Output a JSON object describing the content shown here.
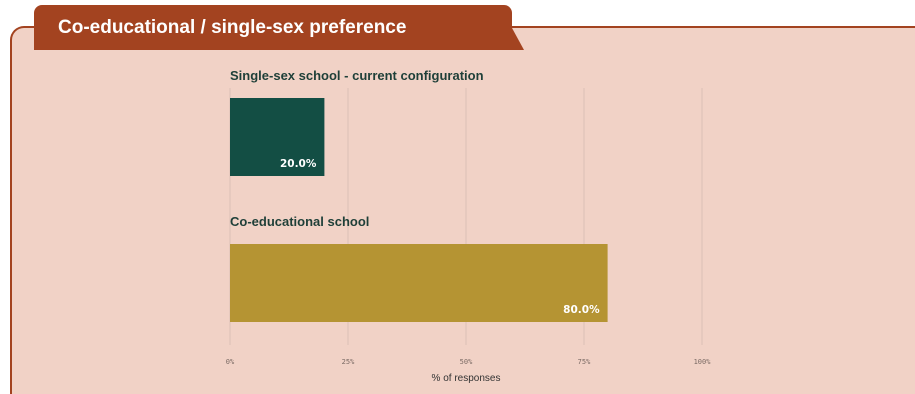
{
  "header": {
    "title": "Co-educational / single-sex preference"
  },
  "colors": {
    "panel_background": "#f1d2c6",
    "accent": "#a34320",
    "series_single_sex": "#134e44",
    "series_co_ed": "#b59433"
  },
  "chart_data": {
    "type": "bar",
    "orientation": "horizontal",
    "title": "Co-educational / single-sex preference",
    "categories": [
      "Single-sex school - current configuration",
      "Co-educational school"
    ],
    "values": [
      20.0,
      80.0
    ],
    "value_labels": [
      "20.0%",
      "80.0%"
    ],
    "bar_colors": [
      "#134e44",
      "#b59433"
    ],
    "xlabel": "% of responses",
    "ylabel": "",
    "xlim": [
      0,
      100
    ],
    "x_ticks": [
      0,
      25,
      50,
      75,
      100
    ],
    "x_tick_labels": [
      "0%",
      "25%",
      "50%",
      "75%",
      "100%"
    ],
    "grid": true,
    "legend": "none"
  }
}
